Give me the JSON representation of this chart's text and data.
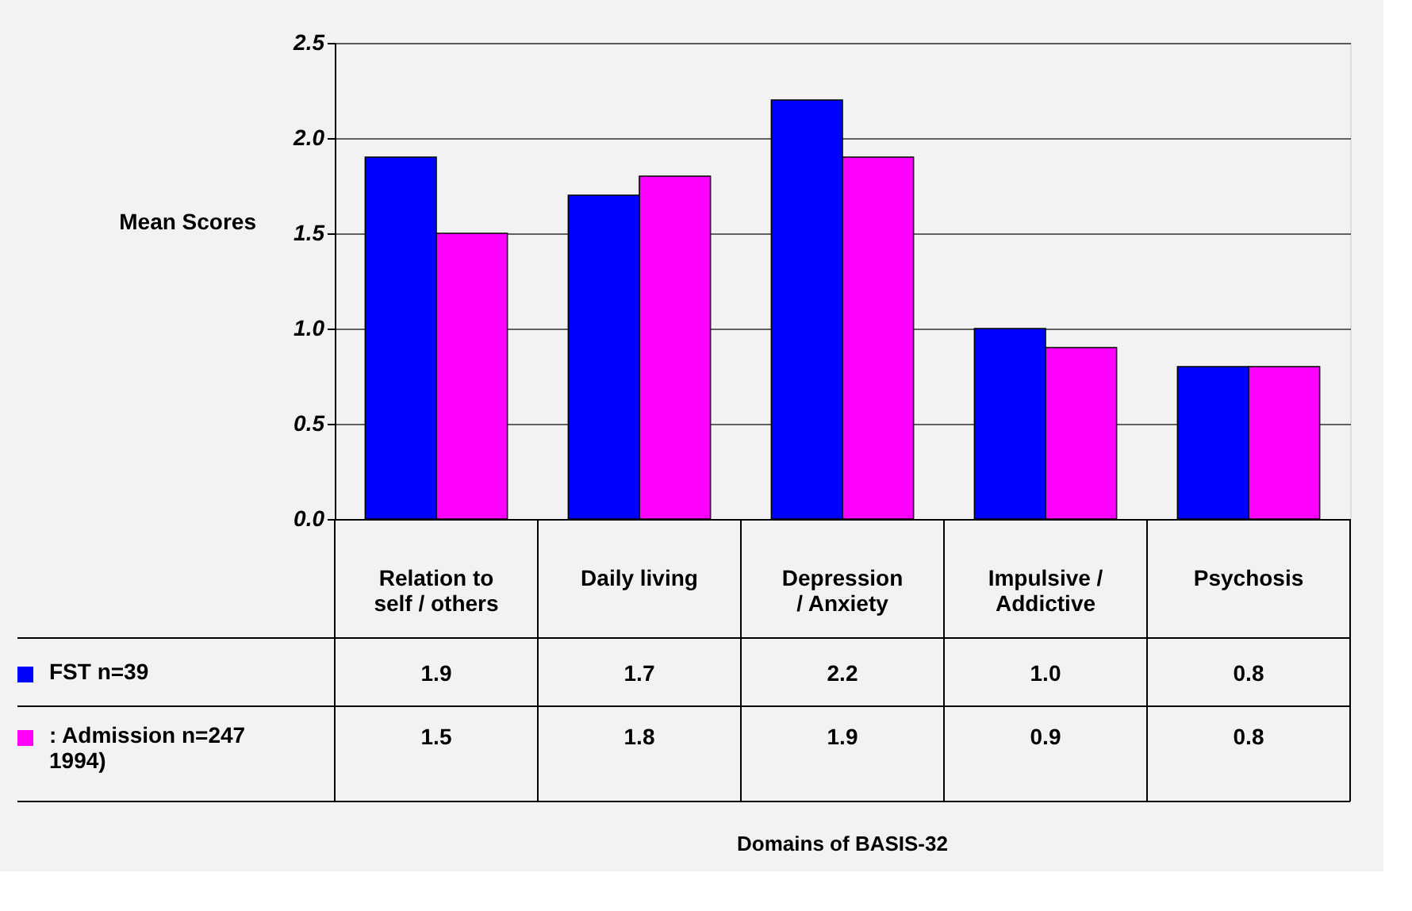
{
  "chart_data": {
    "type": "bar",
    "annotations": [
      "Domains of BASIS-32"
    ],
    "ylabel": "Mean Scores",
    "categories": [
      "Relation to\nself / others",
      "Daily living",
      "Depression\n/ Anxiety",
      "Impulsive /\nAddictive",
      "Psychosis"
    ],
    "series": [
      {
        "name": "FST n=39",
        "color": "#0000ff",
        "values": [
          1.9,
          1.7,
          2.2,
          1.0,
          0.8
        ],
        "value_labels": [
          "1.9",
          "1.7",
          "2.2",
          "1.0",
          "0.8"
        ]
      },
      {
        "name": ": Admission n=247\n 1994)",
        "color": "#ff00ff",
        "values": [
          1.5,
          1.8,
          1.9,
          0.9,
          0.8
        ],
        "value_labels": [
          "1.5",
          "1.8",
          "1.9",
          "0.9",
          "0.8"
        ]
      }
    ],
    "ylim": [
      0,
      2.5
    ],
    "yticks": [
      {
        "value": 0,
        "label": "0.0"
      },
      0.5,
      {
        "value": 1,
        "label": "1.0"
      },
      1.5,
      {
        "value": 2,
        "label": "2.0"
      },
      2.5
    ],
    "grid": "y",
    "legend": "bottom left"
  }
}
